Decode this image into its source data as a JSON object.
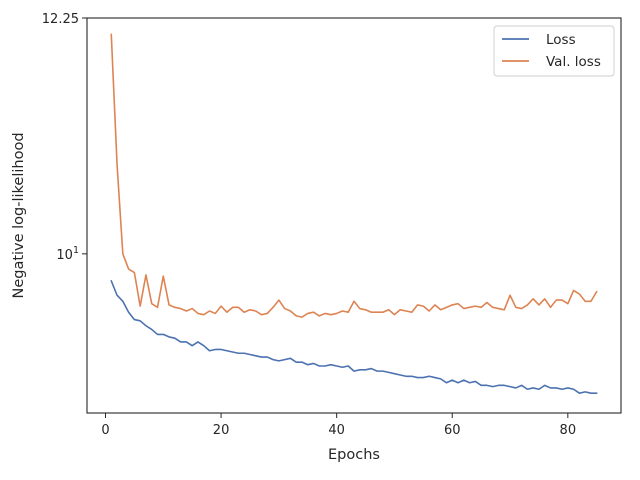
{
  "chart_data": {
    "type": "line",
    "xlabel": "Epochs",
    "ylabel": "Negative log-likelihood",
    "yscale": "log",
    "xlim": [
      -3.2,
      89.2
    ],
    "ylim": [
      8.72,
      12.25
    ],
    "xticks": [
      0,
      20,
      40,
      60,
      80
    ],
    "yticks": [
      {
        "value": 10,
        "label": "10",
        "sup": "1"
      },
      {
        "value": 12.25,
        "label": "12.25",
        "sup": ""
      }
    ],
    "grid": false,
    "legend": "top-right",
    "colors": {
      "loss": "#4c72b0",
      "val_loss": "#dd8452"
    },
    "series": [
      {
        "name": "Loss",
        "x": [
          1,
          2,
          3,
          4,
          5,
          6,
          7,
          8,
          9,
          10,
          11,
          12,
          13,
          14,
          15,
          16,
          17,
          18,
          19,
          20,
          21,
          22,
          23,
          24,
          25,
          26,
          27,
          28,
          29,
          30,
          31,
          32,
          33,
          34,
          35,
          36,
          37,
          38,
          39,
          40,
          41,
          42,
          43,
          44,
          45,
          46,
          47,
          48,
          49,
          50,
          51,
          52,
          53,
          54,
          55,
          56,
          57,
          58,
          59,
          60,
          61,
          62,
          63,
          64,
          65,
          66,
          67,
          68,
          69,
          70,
          71,
          72,
          73,
          74,
          75,
          76,
          77,
          78,
          79,
          80,
          81,
          82,
          83,
          84,
          85
        ],
        "y": [
          9.77,
          9.65,
          9.6,
          9.51,
          9.45,
          9.44,
          9.4,
          9.37,
          9.33,
          9.33,
          9.31,
          9.3,
          9.27,
          9.27,
          9.24,
          9.27,
          9.24,
          9.2,
          9.21,
          9.21,
          9.2,
          9.19,
          9.18,
          9.18,
          9.17,
          9.16,
          9.15,
          9.15,
          9.13,
          9.12,
          9.13,
          9.14,
          9.11,
          9.11,
          9.09,
          9.1,
          9.08,
          9.08,
          9.09,
          9.08,
          9.07,
          9.08,
          9.04,
          9.05,
          9.05,
          9.06,
          9.04,
          9.04,
          9.03,
          9.02,
          9.01,
          9.0,
          9.0,
          8.99,
          8.99,
          9.0,
          8.99,
          8.98,
          8.95,
          8.97,
          8.95,
          8.97,
          8.95,
          8.96,
          8.93,
          8.93,
          8.92,
          8.93,
          8.93,
          8.92,
          8.91,
          8.93,
          8.9,
          8.91,
          8.9,
          8.93,
          8.91,
          8.91,
          8.9,
          8.91,
          8.9,
          8.87,
          8.88,
          8.87,
          8.87
        ]
      },
      {
        "name": "Val. loss",
        "x": [
          1,
          2,
          3,
          4,
          5,
          6,
          7,
          8,
          9,
          10,
          11,
          12,
          13,
          14,
          15,
          16,
          17,
          18,
          19,
          20,
          21,
          22,
          23,
          24,
          25,
          26,
          27,
          28,
          29,
          30,
          31,
          32,
          33,
          34,
          35,
          36,
          37,
          38,
          39,
          40,
          41,
          42,
          43,
          44,
          45,
          46,
          47,
          48,
          49,
          50,
          51,
          52,
          53,
          54,
          55,
          56,
          57,
          58,
          59,
          60,
          61,
          62,
          63,
          64,
          65,
          66,
          67,
          68,
          69,
          70,
          71,
          72,
          73,
          74,
          75,
          76,
          77,
          78,
          79,
          80,
          81,
          82,
          83,
          84,
          85
        ],
        "y": [
          12.08,
          10.8,
          10.0,
          9.87,
          9.84,
          9.56,
          9.82,
          9.58,
          9.55,
          9.81,
          9.57,
          9.55,
          9.54,
          9.52,
          9.54,
          9.5,
          9.49,
          9.52,
          9.5,
          9.56,
          9.51,
          9.55,
          9.55,
          9.51,
          9.53,
          9.52,
          9.49,
          9.5,
          9.55,
          9.61,
          9.54,
          9.52,
          9.48,
          9.47,
          9.5,
          9.51,
          9.48,
          9.5,
          9.49,
          9.5,
          9.52,
          9.51,
          9.6,
          9.54,
          9.53,
          9.51,
          9.51,
          9.51,
          9.53,
          9.49,
          9.53,
          9.52,
          9.51,
          9.57,
          9.56,
          9.52,
          9.57,
          9.53,
          9.55,
          9.57,
          9.58,
          9.54,
          9.55,
          9.56,
          9.55,
          9.59,
          9.55,
          9.54,
          9.53,
          9.65,
          9.55,
          9.54,
          9.57,
          9.62,
          9.57,
          9.62,
          9.55,
          9.61,
          9.61,
          9.58,
          9.69,
          9.66,
          9.6,
          9.6,
          9.68
        ]
      }
    ]
  }
}
